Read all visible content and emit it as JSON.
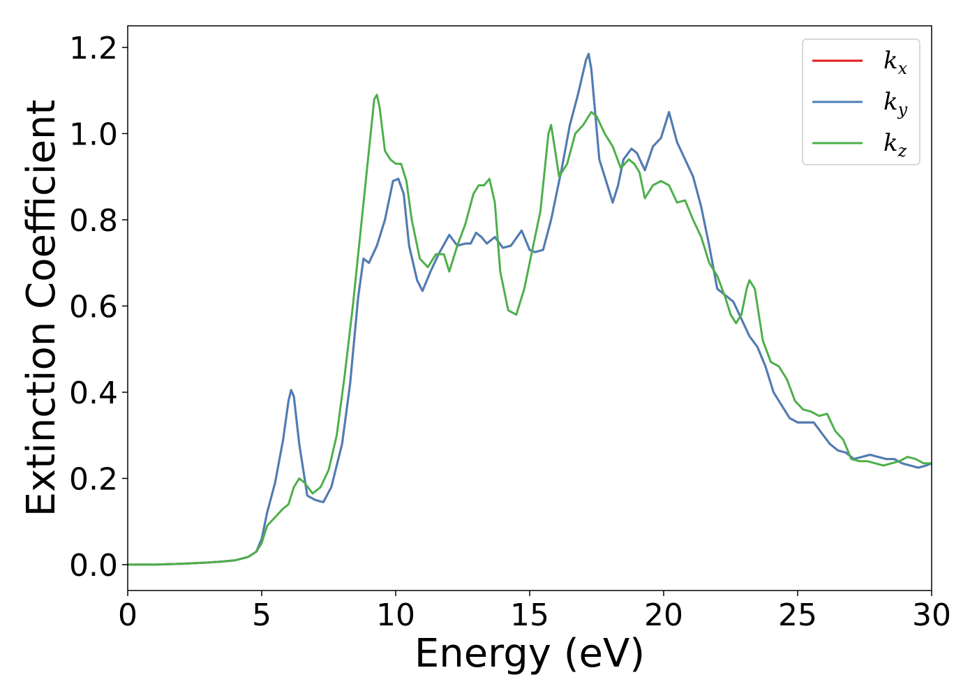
{
  "chart_data": {
    "type": "line",
    "title": "",
    "xlabel": "Energy (eV)",
    "ylabel": "Extinction Coefficient",
    "xlim": [
      0,
      30
    ],
    "ylim": [
      -0.06,
      1.25
    ],
    "xticks": [
      "0",
      "5",
      "10",
      "15",
      "20",
      "25",
      "30"
    ],
    "yticks": [
      "0.0",
      "0.2",
      "0.4",
      "0.6",
      "0.8",
      "1.0",
      "1.2"
    ],
    "grid": false,
    "legend_position": "top-right",
    "series": [
      {
        "name": "k_x",
        "label_main": "k",
        "label_sub": "x",
        "color": "#e41a1c",
        "x": [
          0,
          1,
          2,
          3,
          3.5,
          4,
          4.5,
          4.8,
          5.0,
          5.2,
          5.5,
          5.8,
          6.0,
          6.1,
          6.2,
          6.4,
          6.7,
          7.0,
          7.3,
          7.6,
          8.0,
          8.3,
          8.6,
          8.8,
          9.0,
          9.3,
          9.6,
          9.9,
          10.1,
          10.3,
          10.5,
          10.8,
          11.0,
          11.3,
          11.6,
          12.0,
          12.3,
          12.6,
          12.8,
          13.0,
          13.2,
          13.4,
          13.7,
          14.0,
          14.3,
          14.7,
          15.0,
          15.2,
          15.5,
          15.8,
          16.2,
          16.5,
          16.8,
          17.1,
          17.2,
          17.3,
          17.6,
          17.9,
          18.1,
          18.3,
          18.5,
          18.8,
          19.0,
          19.3,
          19.6,
          19.9,
          20.2,
          20.5,
          20.8,
          21.1,
          21.4,
          21.7,
          22.0,
          22.3,
          22.6,
          22.9,
          23.2,
          23.5,
          23.8,
          24.1,
          24.4,
          24.7,
          25.0,
          25.3,
          25.6,
          25.9,
          26.2,
          26.5,
          26.8,
          27.1,
          27.4,
          27.7,
          28.0,
          28.3,
          28.6,
          28.9,
          29.2,
          29.5,
          29.8,
          30
        ],
        "y": [
          0.0,
          0.0,
          0.002,
          0.005,
          0.007,
          0.01,
          0.018,
          0.03,
          0.06,
          0.12,
          0.19,
          0.29,
          0.38,
          0.405,
          0.39,
          0.28,
          0.16,
          0.15,
          0.145,
          0.18,
          0.28,
          0.42,
          0.62,
          0.71,
          0.7,
          0.74,
          0.8,
          0.89,
          0.895,
          0.86,
          0.74,
          0.66,
          0.635,
          0.68,
          0.72,
          0.765,
          0.74,
          0.745,
          0.745,
          0.77,
          0.76,
          0.745,
          0.76,
          0.735,
          0.74,
          0.775,
          0.73,
          0.725,
          0.73,
          0.8,
          0.92,
          1.02,
          1.09,
          1.17,
          1.185,
          1.15,
          0.94,
          0.88,
          0.84,
          0.88,
          0.94,
          0.965,
          0.955,
          0.915,
          0.97,
          0.99,
          1.05,
          0.98,
          0.94,
          0.9,
          0.83,
          0.74,
          0.64,
          0.625,
          0.61,
          0.57,
          0.53,
          0.505,
          0.46,
          0.4,
          0.37,
          0.34,
          0.33,
          0.33,
          0.33,
          0.305,
          0.28,
          0.265,
          0.26,
          0.245,
          0.25,
          0.255,
          0.25,
          0.245,
          0.245,
          0.235,
          0.23,
          0.225,
          0.23,
          0.235
        ]
      },
      {
        "name": "k_y",
        "label_main": "k",
        "label_sub": "y",
        "color": "#4a7fb8",
        "x": [
          0,
          1,
          2,
          3,
          3.5,
          4,
          4.5,
          4.8,
          5.0,
          5.2,
          5.5,
          5.8,
          6.0,
          6.1,
          6.2,
          6.4,
          6.7,
          7.0,
          7.3,
          7.6,
          8.0,
          8.3,
          8.6,
          8.8,
          9.0,
          9.3,
          9.6,
          9.9,
          10.1,
          10.3,
          10.5,
          10.8,
          11.0,
          11.3,
          11.6,
          12.0,
          12.3,
          12.6,
          12.8,
          13.0,
          13.2,
          13.4,
          13.7,
          14.0,
          14.3,
          14.7,
          15.0,
          15.2,
          15.5,
          15.8,
          16.2,
          16.5,
          16.8,
          17.1,
          17.2,
          17.3,
          17.6,
          17.9,
          18.1,
          18.3,
          18.5,
          18.8,
          19.0,
          19.3,
          19.6,
          19.9,
          20.2,
          20.5,
          20.8,
          21.1,
          21.4,
          21.7,
          22.0,
          22.3,
          22.6,
          22.9,
          23.2,
          23.5,
          23.8,
          24.1,
          24.4,
          24.7,
          25.0,
          25.3,
          25.6,
          25.9,
          26.2,
          26.5,
          26.8,
          27.1,
          27.4,
          27.7,
          28.0,
          28.3,
          28.6,
          28.9,
          29.2,
          29.5,
          29.8,
          30
        ],
        "y": [
          0.0,
          0.0,
          0.002,
          0.005,
          0.007,
          0.01,
          0.018,
          0.03,
          0.06,
          0.12,
          0.19,
          0.29,
          0.38,
          0.405,
          0.39,
          0.28,
          0.16,
          0.15,
          0.145,
          0.18,
          0.28,
          0.42,
          0.62,
          0.71,
          0.7,
          0.74,
          0.8,
          0.89,
          0.895,
          0.86,
          0.74,
          0.66,
          0.635,
          0.68,
          0.72,
          0.765,
          0.74,
          0.745,
          0.745,
          0.77,
          0.76,
          0.745,
          0.76,
          0.735,
          0.74,
          0.775,
          0.73,
          0.725,
          0.73,
          0.8,
          0.92,
          1.02,
          1.09,
          1.17,
          1.185,
          1.15,
          0.94,
          0.88,
          0.84,
          0.88,
          0.94,
          0.965,
          0.955,
          0.915,
          0.97,
          0.99,
          1.05,
          0.98,
          0.94,
          0.9,
          0.83,
          0.74,
          0.64,
          0.625,
          0.61,
          0.57,
          0.53,
          0.505,
          0.46,
          0.4,
          0.37,
          0.34,
          0.33,
          0.33,
          0.33,
          0.305,
          0.28,
          0.265,
          0.26,
          0.245,
          0.25,
          0.255,
          0.25,
          0.245,
          0.245,
          0.235,
          0.23,
          0.225,
          0.23,
          0.235
        ]
      },
      {
        "name": "k_z",
        "label_main": "k",
        "label_sub": "z",
        "color": "#4daf4a",
        "x": [
          0,
          1,
          2,
          3,
          3.5,
          4,
          4.5,
          4.8,
          5.0,
          5.2,
          5.5,
          5.8,
          6.0,
          6.2,
          6.4,
          6.6,
          6.9,
          7.2,
          7.5,
          7.8,
          8.1,
          8.4,
          8.7,
          9.0,
          9.2,
          9.3,
          9.4,
          9.6,
          9.8,
          10.0,
          10.2,
          10.4,
          10.6,
          10.9,
          11.2,
          11.5,
          11.8,
          12.0,
          12.3,
          12.6,
          12.9,
          13.1,
          13.3,
          13.5,
          13.7,
          13.9,
          14.2,
          14.5,
          14.8,
          15.1,
          15.4,
          15.7,
          15.8,
          15.9,
          16.1,
          16.4,
          16.7,
          17.0,
          17.3,
          17.5,
          17.8,
          18.1,
          18.4,
          18.7,
          18.9,
          19.1,
          19.3,
          19.6,
          19.9,
          20.2,
          20.5,
          20.8,
          21.1,
          21.4,
          21.7,
          22.0,
          22.3,
          22.5,
          22.7,
          22.9,
          23.1,
          23.2,
          23.4,
          23.7,
          24.0,
          24.3,
          24.6,
          24.9,
          25.2,
          25.5,
          25.8,
          26.1,
          26.4,
          26.7,
          27.0,
          27.3,
          27.6,
          27.9,
          28.2,
          28.5,
          28.8,
          29.1,
          29.4,
          29.7,
          30
        ],
        "y": [
          0.0,
          0.0,
          0.002,
          0.005,
          0.007,
          0.01,
          0.018,
          0.03,
          0.05,
          0.09,
          0.11,
          0.13,
          0.14,
          0.18,
          0.2,
          0.19,
          0.165,
          0.18,
          0.22,
          0.3,
          0.44,
          0.6,
          0.78,
          0.96,
          1.08,
          1.09,
          1.06,
          0.96,
          0.94,
          0.93,
          0.93,
          0.89,
          0.8,
          0.71,
          0.69,
          0.72,
          0.72,
          0.68,
          0.74,
          0.79,
          0.86,
          0.88,
          0.88,
          0.895,
          0.84,
          0.68,
          0.59,
          0.58,
          0.64,
          0.73,
          0.82,
          1.0,
          1.02,
          0.98,
          0.9,
          0.93,
          1.0,
          1.02,
          1.05,
          1.04,
          1.0,
          0.97,
          0.92,
          0.94,
          0.93,
          0.91,
          0.85,
          0.88,
          0.89,
          0.88,
          0.84,
          0.845,
          0.8,
          0.76,
          0.7,
          0.67,
          0.62,
          0.58,
          0.56,
          0.58,
          0.64,
          0.66,
          0.64,
          0.52,
          0.47,
          0.46,
          0.43,
          0.38,
          0.36,
          0.355,
          0.345,
          0.35,
          0.31,
          0.29,
          0.245,
          0.24,
          0.24,
          0.235,
          0.23,
          0.235,
          0.24,
          0.25,
          0.245,
          0.235,
          0.235
        ]
      }
    ]
  }
}
